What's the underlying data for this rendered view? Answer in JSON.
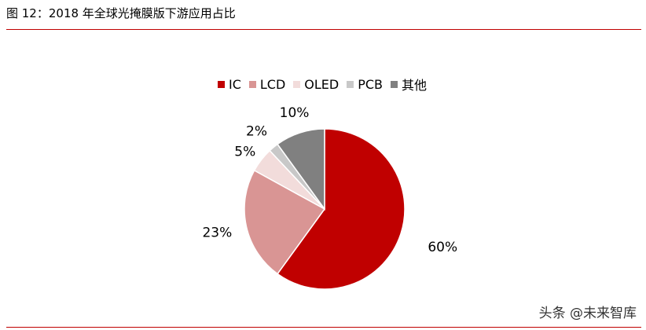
{
  "figure": {
    "title": "图 12：2018 年全球光掩膜版下游应用占比"
  },
  "chart_data": {
    "type": "pie",
    "categories": [
      "IC",
      "LCD",
      "OLED",
      "PCB",
      "其他"
    ],
    "values": [
      60,
      23,
      5,
      2,
      10
    ],
    "value_labels": [
      "60%",
      "23%",
      "5%",
      "2%",
      "10%"
    ],
    "colors": [
      "#c00000",
      "#d99594",
      "#f2dcdb",
      "#c8c8c8",
      "#808080"
    ],
    "start_angle_deg": 0,
    "direction": "clockwise",
    "legend_position": "top",
    "title": ""
  },
  "watermark": {
    "text": "头条 @未来智库"
  }
}
